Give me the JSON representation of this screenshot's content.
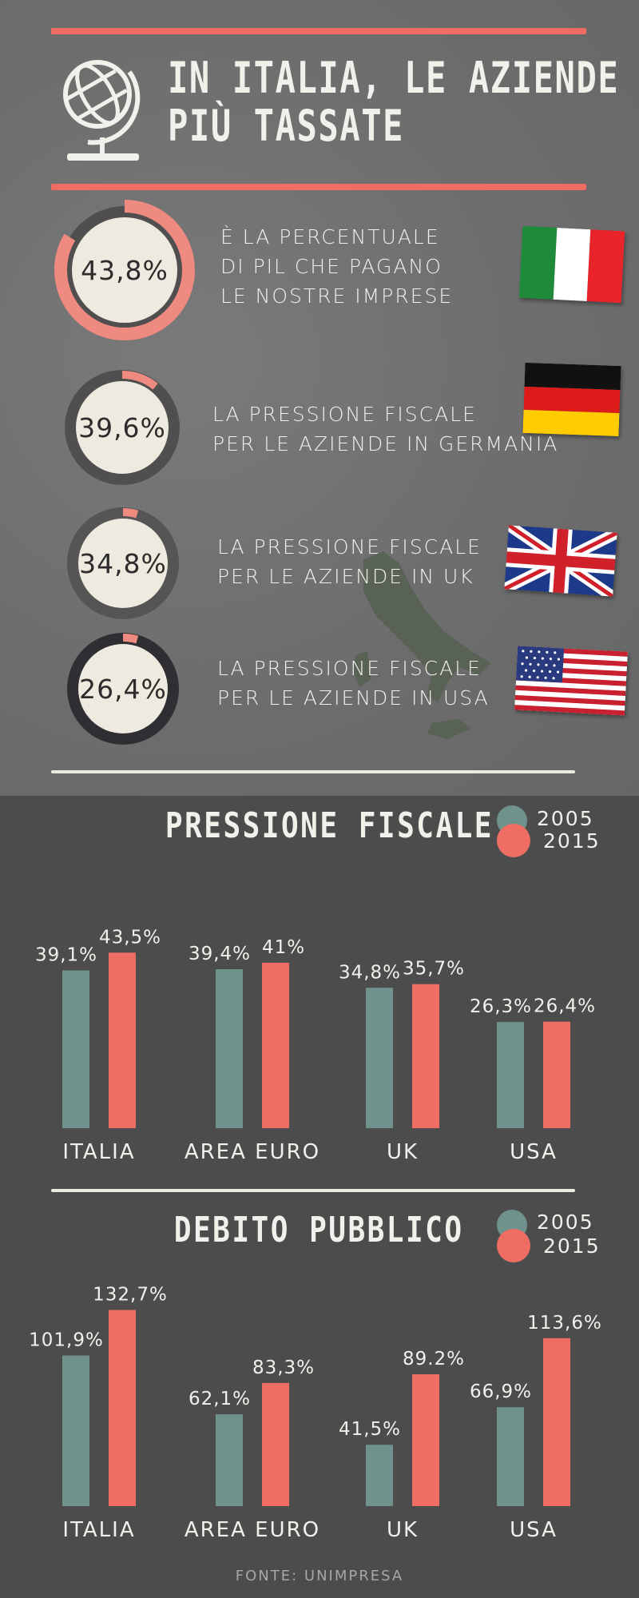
{
  "header": {
    "title_line1": "IN ITALIA, LE AZIENDE",
    "title_line2": "PIÙ TASSATE",
    "icon": "globe-icon"
  },
  "stats": [
    {
      "value": "43,8%",
      "pct": 43.8,
      "line1": "È LA PERCENTUALE",
      "line2": "DI PIL CHE PAGANO",
      "line3": "LE NOSTRE IMPRESE",
      "flag": "italy-flag-icon"
    },
    {
      "value": "39,6%",
      "pct": 39.6,
      "line1": "LA PRESSIONE FISCALE",
      "line2": "PER LE AZIENDE IN GERMANIA",
      "line3": "",
      "flag": "germany-flag-icon"
    },
    {
      "value": "34,8%",
      "pct": 34.8,
      "line1": "LA PRESSIONE FISCALE",
      "line2": "PER LE AZIENDE IN UK",
      "line3": "",
      "flag": "uk-flag-icon"
    },
    {
      "value": "26,4%",
      "pct": 26.4,
      "line1": "LA PRESSIONE FISCALE",
      "line2": "PER LE AZIENDE IN USA",
      "line3": "",
      "flag": "usa-flag-icon"
    }
  ],
  "colors": {
    "y2005": "#6f928c",
    "y2015": "#ef6d63",
    "ring_track": "#4f4f4f",
    "ring_accent": "#ef8a80",
    "circle_fill": "#eeeae0"
  },
  "legend": {
    "y2005": "2005",
    "y2015": "2015"
  },
  "chart_data": [
    {
      "type": "bar",
      "title": "PRESSIONE FISCALE",
      "categories": [
        "ITALIA",
        "AREA EURO",
        "UK",
        "USA"
      ],
      "series": [
        {
          "name": "2005",
          "values": [
            39.1,
            39.4,
            34.8,
            26.3
          ],
          "labels": [
            "39,1%",
            "39,4%",
            "34,8%",
            "26,3%"
          ]
        },
        {
          "name": "2015",
          "values": [
            43.5,
            41,
            35.7,
            26.4
          ],
          "labels": [
            "43,5%",
            "41%",
            "35,7%",
            "26,4%"
          ]
        }
      ]
    },
    {
      "type": "bar",
      "title": "DEBITO PUBBLICO",
      "categories": [
        "ITALIA",
        "AREA EURO",
        "UK",
        "USA"
      ],
      "series": [
        {
          "name": "2005",
          "values": [
            101.9,
            62.1,
            41.5,
            66.9
          ],
          "labels": [
            "101,9%",
            "62,1%",
            "41,5%",
            "66,9%"
          ]
        },
        {
          "name": "2015",
          "values": [
            132.7,
            83.3,
            89.2,
            113.6
          ],
          "labels": [
            "132,7%",
            "83,3%",
            "89.2%",
            "113,6%"
          ]
        }
      ]
    }
  ],
  "source": "FONTE: UNIMPRESA"
}
